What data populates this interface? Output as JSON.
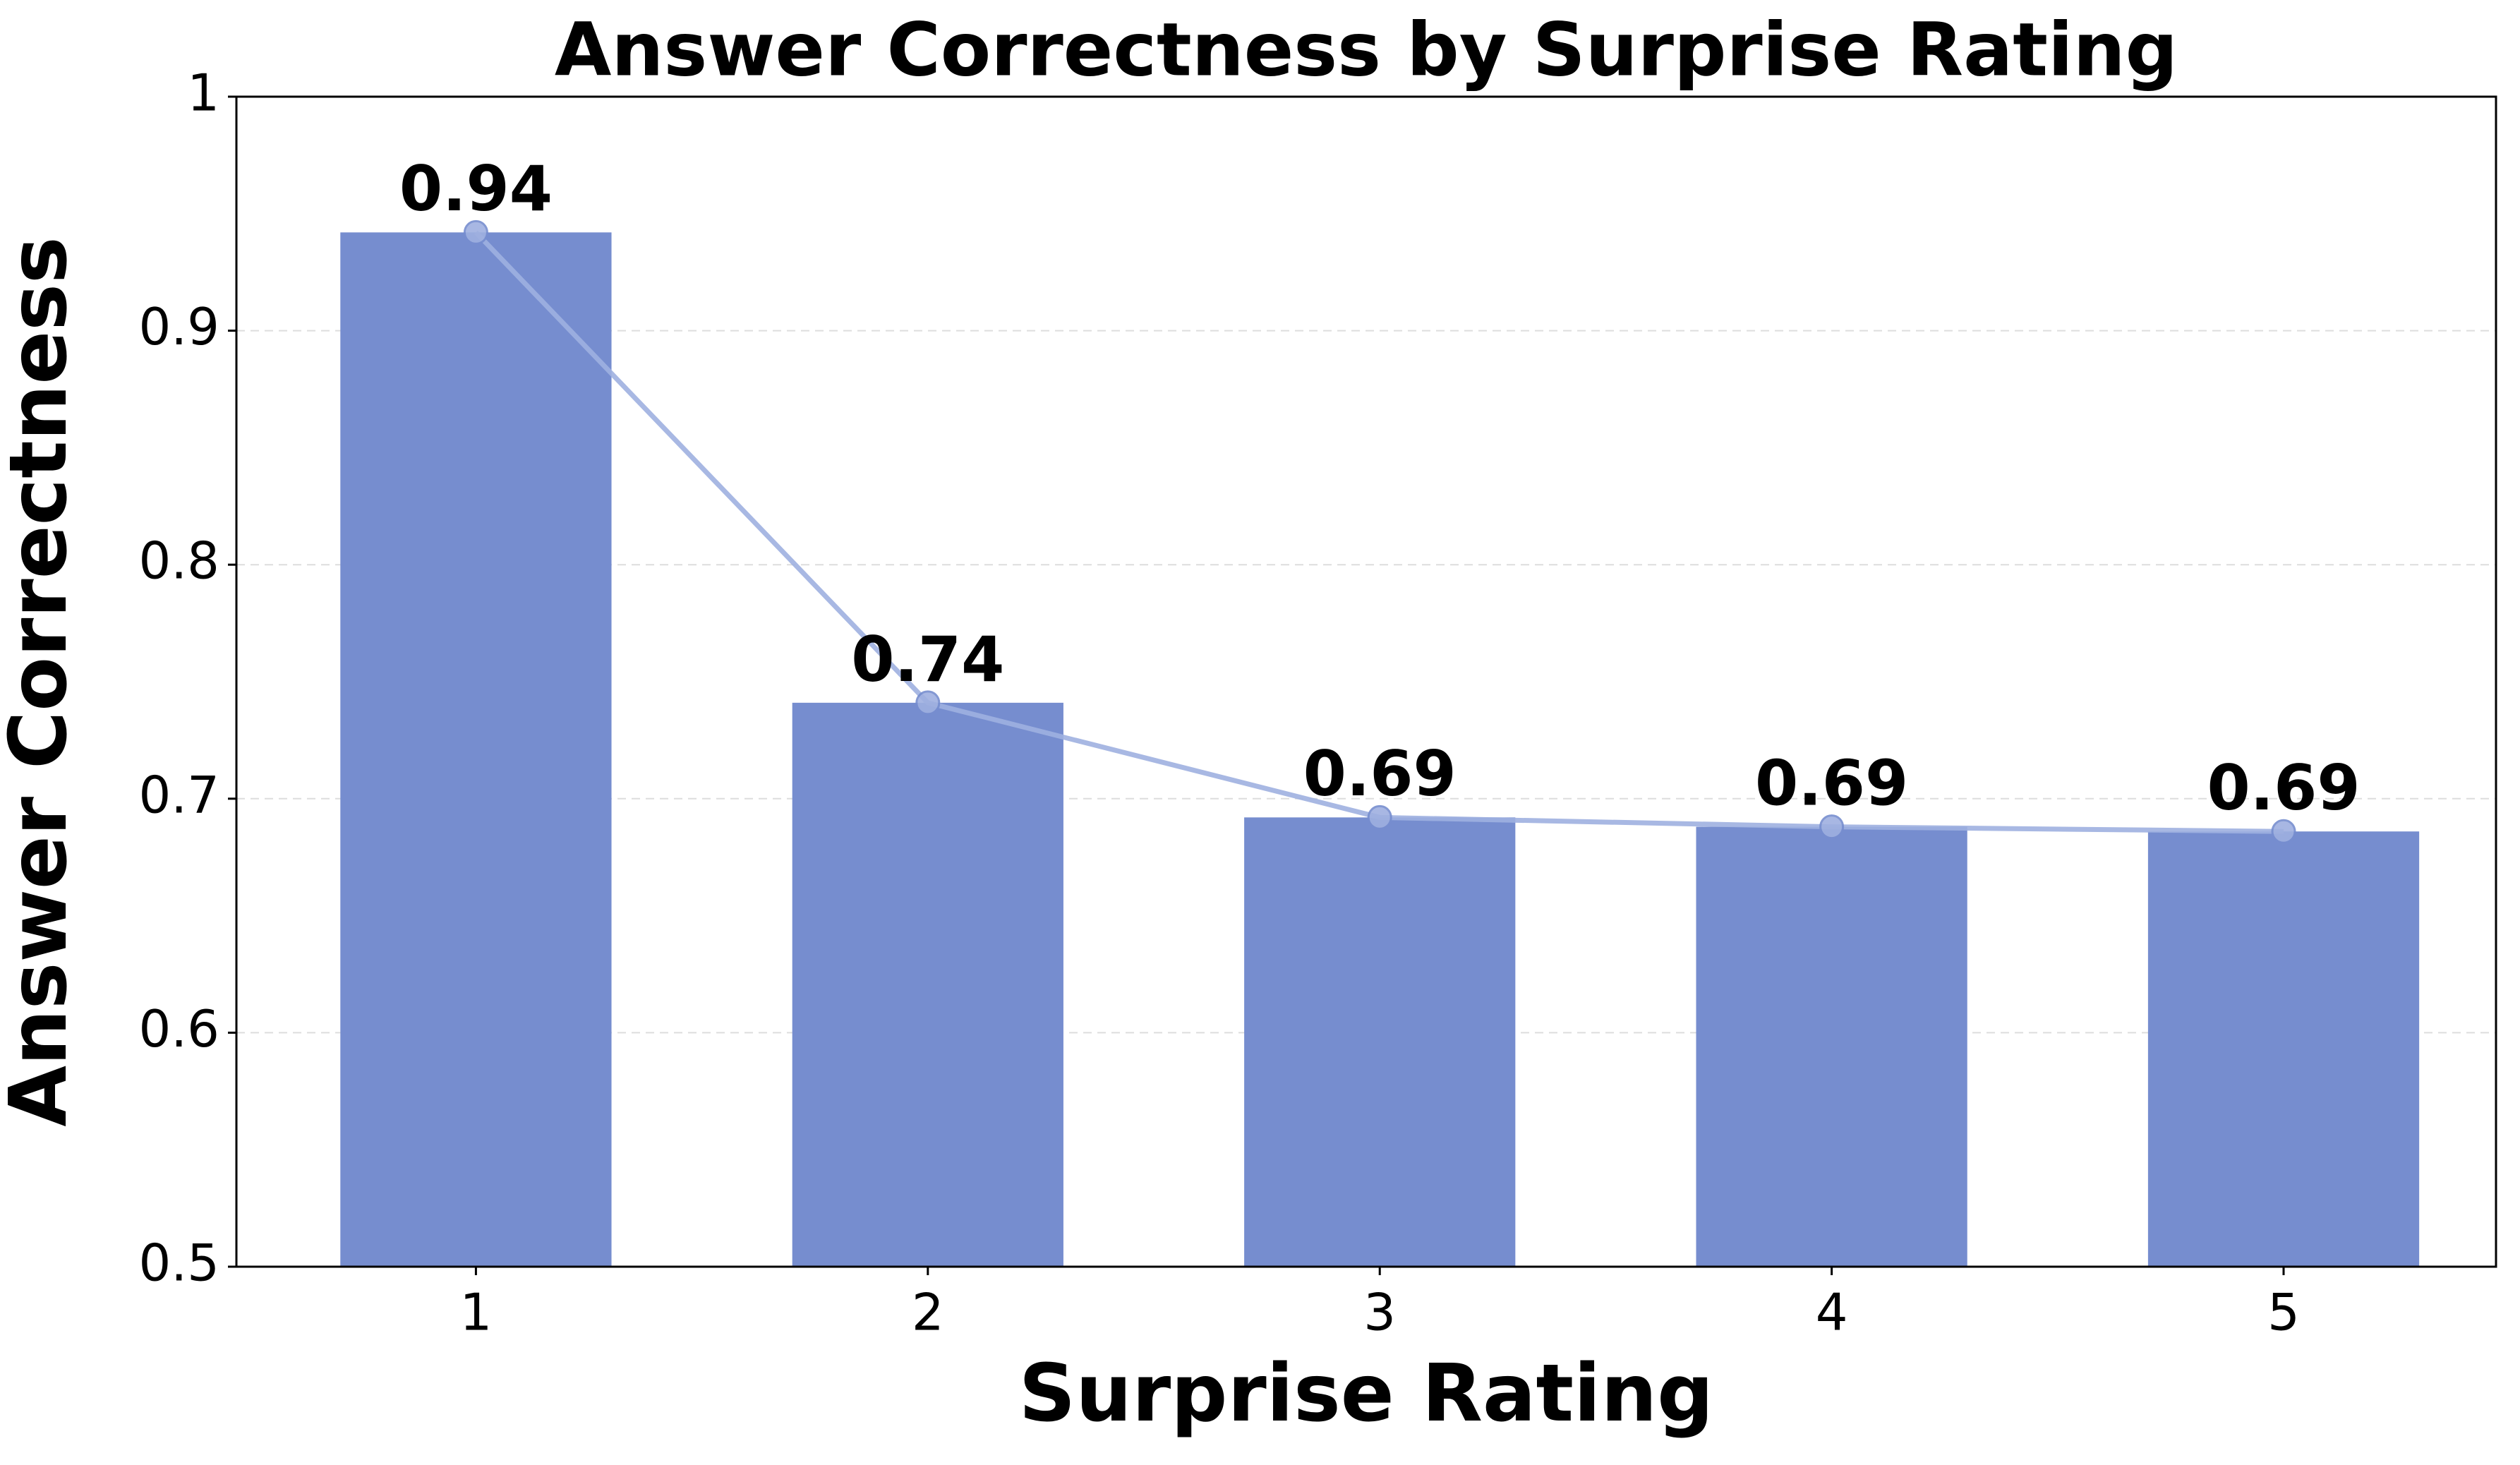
{
  "chart_data": {
    "type": "bar",
    "title": "Answer Correctness by Surprise Rating",
    "x_label": "Surprise Rating",
    "y_label": "Answer Correctness",
    "categories": [
      "1",
      "2",
      "3",
      "4",
      "5"
    ],
    "values": [
      0.942,
      0.741,
      0.692,
      0.688,
      0.686
    ],
    "value_labels": [
      "0.94",
      "0.74",
      "0.69",
      "0.69",
      "0.69"
    ],
    "color": "#768dcf",
    "line_color": "#9fb0e0",
    "ylim": [
      0.5,
      1.0
    ],
    "yticks": [
      0.5,
      0.6,
      0.7,
      0.8,
      0.9,
      1.0
    ],
    "grid": true
  }
}
